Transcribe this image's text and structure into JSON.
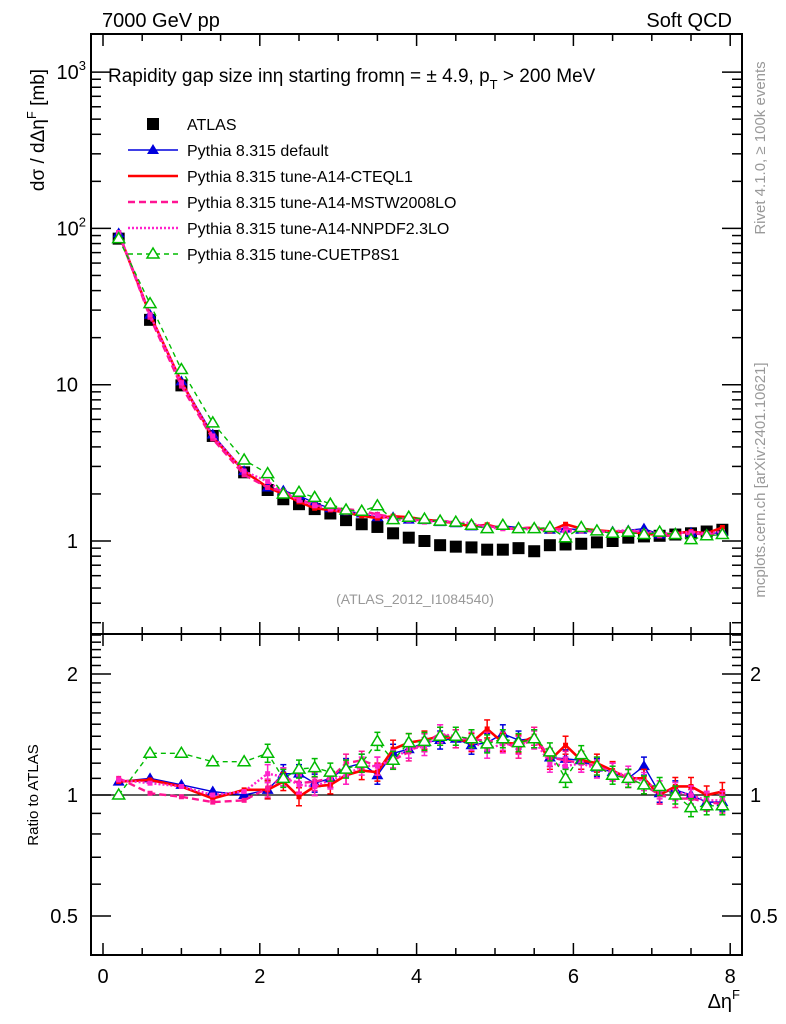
{
  "header": {
    "left": "7000 GeV pp",
    "right": "Soft QCD"
  },
  "side_labels": {
    "rivet": "Rivet 4.1.0, ≥ 100k events",
    "mcplots": "mcplots.cern.ch [arXiv:2401.10621]"
  },
  "watermark": "(ATLAS_2012_I1084540)",
  "chart_data": [
    {
      "type": "scatter",
      "panel": "main",
      "title": "Rapidity gap size in η starting from η = ± 4.9, p_T > 200 MeV",
      "title_parts": {
        "main": "Rapidity gap size inη starting fromη = ± 4.9, p",
        "sub": "T",
        "tail": " > 200 MeV"
      },
      "ylabel": "dσ / dΔη^F [mb]",
      "ylabel_parts": {
        "main": "dσ / dΔη",
        "sup": "F",
        "tail": " [mb]"
      },
      "xlabel": "Δη^F",
      "yscale": "log",
      "ylim": [
        0.28,
        1800
      ],
      "xlim": [
        -0.05,
        8.1
      ],
      "ytick_labels": [
        {
          "value": 1000,
          "label": "10",
          "sup": "3"
        },
        {
          "value": 100,
          "label": "10",
          "sup": "2"
        },
        {
          "value": 10,
          "label": "10",
          "sup": ""
        },
        {
          "value": 1,
          "label": "1",
          "sup": ""
        }
      ],
      "legend_position": "top-left",
      "x": [
        0.2,
        0.6,
        1.0,
        1.4,
        1.8,
        2.1,
        2.3,
        2.5,
        2.7,
        2.9,
        3.1,
        3.3,
        3.5,
        3.7,
        3.9,
        4.1,
        4.3,
        4.5,
        4.7,
        4.9,
        5.1,
        5.3,
        5.5,
        5.7,
        5.9,
        6.1,
        6.3,
        6.5,
        6.7,
        6.9,
        7.1,
        7.3,
        7.5,
        7.7,
        7.9
      ],
      "series": [
        {
          "name": "ATLAS",
          "color": "#000000",
          "style": "square",
          "values": [
            86,
            26,
            9.9,
            4.7,
            2.75,
            2.12,
            1.85,
            1.72,
            1.6,
            1.5,
            1.36,
            1.28,
            1.23,
            1.12,
            1.05,
            1.0,
            0.94,
            0.92,
            0.91,
            0.88,
            0.88,
            0.9,
            0.86,
            0.94,
            0.95,
            0.96,
            0.98,
            1.0,
            1.05,
            1.07,
            1.08,
            1.1,
            1.12,
            1.15,
            1.18
          ]
        },
        {
          "name": "Pythia 8.315 default",
          "color": "#0000dd",
          "style": "solid-triangle",
          "values": [
            93,
            28,
            10.5,
            4.8,
            2.8,
            2.2,
            2.1,
            1.95,
            1.75,
            1.62,
            1.55,
            1.5,
            1.42,
            1.42,
            1.37,
            1.36,
            1.32,
            1.3,
            1.24,
            1.22,
            1.25,
            1.22,
            1.2,
            1.18,
            1.2,
            1.18,
            1.17,
            1.15,
            1.17,
            1.2,
            1.1,
            1.12,
            1.13,
            1.1,
            1.14
          ]
        },
        {
          "name": "Pythia 8.315 tune-A14-CTEQL1",
          "color": "#ff0000",
          "style": "solid-line",
          "values": [
            93,
            28,
            10.4,
            4.6,
            2.8,
            2.2,
            2.0,
            1.78,
            1.62,
            1.58,
            1.52,
            1.45,
            1.4,
            1.44,
            1.42,
            1.37,
            1.34,
            1.3,
            1.24,
            1.27,
            1.2,
            1.2,
            1.22,
            1.16,
            1.28,
            1.2,
            1.17,
            1.15,
            1.14,
            1.12,
            1.09,
            1.12,
            1.15,
            1.12,
            1.22
          ]
        },
        {
          "name": "Pythia 8.315 tune-A14-MSTW2008LO",
          "color": "#ff1493",
          "style": "dashed",
          "values": [
            94,
            27,
            9.8,
            4.5,
            2.65,
            2.2,
            2.08,
            1.85,
            1.7,
            1.62,
            1.6,
            1.56,
            1.48,
            1.42,
            1.38,
            1.35,
            1.36,
            1.3,
            1.28,
            1.24,
            1.22,
            1.2,
            1.23,
            1.18,
            1.2,
            1.16,
            1.16,
            1.14,
            1.16,
            1.14,
            1.08,
            1.08,
            1.12,
            1.1,
            1.12
          ]
        },
        {
          "name": "Pythia 8.315 tune-A14-NNPDF2.3LO",
          "color": "#ff22cc",
          "style": "dotted",
          "values": [
            94,
            28,
            10.3,
            4.7,
            2.8,
            2.4,
            2.05,
            1.82,
            1.68,
            1.6,
            1.52,
            1.5,
            1.45,
            1.38,
            1.36,
            1.32,
            1.35,
            1.32,
            1.3,
            1.22,
            1.2,
            1.2,
            1.18,
            1.17,
            1.15,
            1.16,
            1.14,
            1.15,
            1.18,
            1.15,
            1.12,
            1.12,
            1.14,
            1.12,
            1.15
          ]
        },
        {
          "name": "Pythia 8.315 tune-CUETP8S1",
          "color": "#00bb00",
          "style": "dashed-open-triangle",
          "values": [
            86,
            33,
            12.5,
            5.7,
            3.3,
            2.7,
            2.0,
            2.05,
            1.9,
            1.72,
            1.58,
            1.55,
            1.68,
            1.37,
            1.42,
            1.38,
            1.34,
            1.32,
            1.26,
            1.2,
            1.26,
            1.2,
            1.2,
            1.22,
            1.05,
            1.22,
            1.16,
            1.12,
            1.14,
            1.1,
            1.14,
            1.1,
            1.02,
            1.08,
            1.1
          ]
        }
      ]
    },
    {
      "type": "line",
      "panel": "ratio",
      "ylabel": "Ratio to ATLAS",
      "xlabel": "Δη^F",
      "xlabel_parts": {
        "main": "Δη",
        "sup": "F"
      },
      "yscale": "log",
      "ylim": [
        0.4,
        2.5
      ],
      "xlim": [
        -0.05,
        8.1
      ],
      "ytick_labels": [
        "2",
        "1",
        "0.5"
      ],
      "ytick_values": [
        2,
        1,
        0.5
      ],
      "xtick_labels": [
        "0",
        "2",
        "4",
        "6",
        "8"
      ],
      "xtick_values": [
        0,
        2,
        4,
        6,
        8
      ],
      "reference_line": 1,
      "x": [
        0.2,
        0.6,
        1.0,
        1.4,
        1.8,
        2.1,
        2.3,
        2.5,
        2.7,
        2.9,
        3.1,
        3.3,
        3.5,
        3.7,
        3.9,
        4.1,
        4.3,
        4.5,
        4.7,
        4.9,
        5.1,
        5.3,
        5.5,
        5.7,
        5.9,
        6.1,
        6.3,
        6.5,
        6.7,
        6.9,
        7.1,
        7.3,
        7.5,
        7.7,
        7.9
      ],
      "series": [
        {
          "name": "Pythia 8.315 default",
          "color": "#0000dd",
          "style": "solid-triangle",
          "values": [
            1.08,
            1.1,
            1.06,
            1.02,
            1.0,
            1.03,
            1.13,
            1.13,
            1.07,
            1.1,
            1.17,
            1.2,
            1.12,
            1.27,
            1.3,
            1.35,
            1.37,
            1.38,
            1.33,
            1.35,
            1.42,
            1.37,
            1.38,
            1.24,
            1.23,
            1.22,
            1.17,
            1.14,
            1.1,
            1.18,
            1.01,
            1.03,
            1.0,
            0.96,
            0.96
          ]
        },
        {
          "name": "Pythia 8.315 tune-A14-CTEQL1",
          "color": "#ff0000",
          "style": "solid-line",
          "values": [
            1.08,
            1.09,
            1.05,
            0.98,
            1.03,
            1.03,
            1.08,
            0.99,
            1.05,
            1.06,
            1.12,
            1.15,
            1.14,
            1.3,
            1.35,
            1.37,
            1.4,
            1.38,
            1.35,
            1.46,
            1.35,
            1.34,
            1.4,
            1.22,
            1.33,
            1.22,
            1.2,
            1.15,
            1.1,
            1.1,
            1.0,
            1.05,
            1.05,
            1.0,
            1.02
          ]
        },
        {
          "name": "Pythia 8.315 tune-A14-MSTW2008LO",
          "color": "#ff1493",
          "style": "dashed",
          "values": [
            1.1,
            1.01,
            0.99,
            0.96,
            0.97,
            1.04,
            1.11,
            1.07,
            1.08,
            1.1,
            1.2,
            1.22,
            1.18,
            1.22,
            1.28,
            1.35,
            1.42,
            1.38,
            1.38,
            1.36,
            1.36,
            1.3,
            1.4,
            1.24,
            1.22,
            1.2,
            1.18,
            1.14,
            1.1,
            1.06,
            1.0,
            0.98,
            0.98,
            0.96,
            0.95
          ]
        },
        {
          "name": "Pythia 8.315 tune-A14-NNPDF2.3LO",
          "color": "#ff22cc",
          "style": "dotted",
          "values": [
            1.09,
            1.07,
            1.05,
            1.0,
            1.02,
            1.13,
            1.11,
            1.06,
            1.05,
            1.09,
            1.12,
            1.18,
            1.18,
            1.23,
            1.3,
            1.32,
            1.42,
            1.4,
            1.36,
            1.3,
            1.34,
            1.33,
            1.37,
            1.2,
            1.18,
            1.2,
            1.16,
            1.14,
            1.12,
            1.08,
            1.03,
            1.02,
            1.0,
            0.97,
            0.97
          ]
        },
        {
          "name": "Pythia 8.315 tune-CUETP8S1",
          "color": "#00bb00",
          "style": "dashed-open-triangle",
          "values": [
            1.0,
            1.27,
            1.27,
            1.21,
            1.21,
            1.27,
            1.1,
            1.16,
            1.17,
            1.14,
            1.16,
            1.2,
            1.36,
            1.22,
            1.35,
            1.36,
            1.4,
            1.4,
            1.38,
            1.34,
            1.38,
            1.35,
            1.38,
            1.28,
            1.1,
            1.26,
            1.18,
            1.12,
            1.1,
            1.06,
            1.05,
            1.0,
            0.93,
            0.94,
            0.94
          ]
        }
      ]
    }
  ]
}
